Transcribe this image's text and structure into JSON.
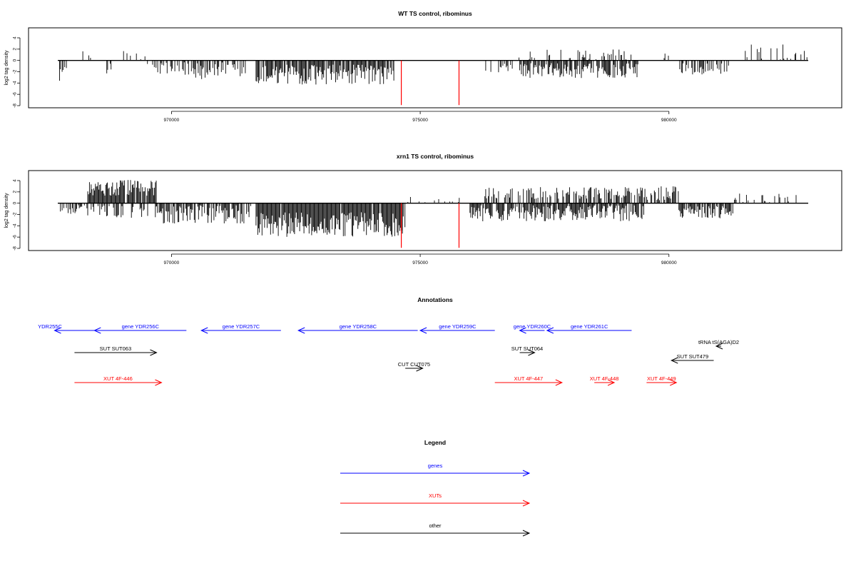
{
  "colors": {
    "gene": "#0000ff",
    "xut": "#ff0000",
    "other": "#000000",
    "marker": "#ff0000",
    "signal": "#000000"
  },
  "chart_data": [
    {
      "type": "bar",
      "title": "WT TS control, ribominus",
      "ylabel": "log2 tag density",
      "xlim": [
        967700,
        982900
      ],
      "ylim": [
        -8,
        5
      ],
      "xticks": [
        970000,
        975000,
        980000
      ],
      "yticks": [
        -8,
        -6,
        -4,
        -2,
        0,
        2,
        4
      ],
      "grid": false,
      "markers": [
        974620,
        975780
      ],
      "profile_regions": [
        {
          "start": 967750,
          "end": 967900,
          "mean": -2.0,
          "amp": 1.5,
          "fill": 0.6
        },
        {
          "start": 968200,
          "end": 968400,
          "mean": 1.0,
          "amp": 0.6,
          "fill": 0.4
        },
        {
          "start": 968700,
          "end": 968800,
          "mean": -1.2,
          "amp": 1.0,
          "fill": 0.5
        },
        {
          "start": 968950,
          "end": 969500,
          "mean": 0.9,
          "amp": 0.8,
          "fill": 0.35
        },
        {
          "start": 969500,
          "end": 970400,
          "mean": -1.5,
          "amp": 1.2,
          "fill": 0.5
        },
        {
          "start": 970400,
          "end": 971500,
          "mean": -1.8,
          "amp": 1.4,
          "fill": 0.55
        },
        {
          "start": 971700,
          "end": 974500,
          "mean": -2.5,
          "amp": 1.6,
          "fill": 0.85
        },
        {
          "start": 976300,
          "end": 976900,
          "mean": -1.4,
          "amp": 1.0,
          "fill": 0.45
        },
        {
          "start": 976900,
          "end": 977300,
          "mean": 1.2,
          "amp": 1.2,
          "fill": 0.35
        },
        {
          "start": 977000,
          "end": 979400,
          "mean": -1.8,
          "amp": 1.2,
          "fill": 0.8
        },
        {
          "start": 977500,
          "end": 979300,
          "mean": 1.0,
          "amp": 0.9,
          "fill": 0.2
        },
        {
          "start": 979800,
          "end": 980000,
          "mean": 0.8,
          "amp": 0.4,
          "fill": 0.3
        },
        {
          "start": 980200,
          "end": 981200,
          "mean": -1.5,
          "amp": 1.0,
          "fill": 0.45
        },
        {
          "start": 981500,
          "end": 982800,
          "mean": 1.5,
          "amp": 1.2,
          "fill": 0.25
        }
      ]
    },
    {
      "type": "bar",
      "title": "xrn1 TS control, ribominus",
      "ylabel": "log2 tag density",
      "xlim": [
        967700,
        982900
      ],
      "ylim": [
        -8,
        5
      ],
      "xticks": [
        970000,
        975000,
        980000
      ],
      "yticks": [
        -8,
        -6,
        -4,
        -2,
        0,
        2,
        4
      ],
      "grid": false,
      "markers": [
        974620,
        975780
      ],
      "profile_regions": [
        {
          "start": 967750,
          "end": 968300,
          "mean": -1.2,
          "amp": 0.8,
          "fill": 0.5
        },
        {
          "start": 968300,
          "end": 969700,
          "mean": 2.7,
          "amp": 1.3,
          "fill": 0.95
        },
        {
          "start": 968300,
          "end": 969700,
          "mean": -1.5,
          "amp": 1.0,
          "fill": 0.35
        },
        {
          "start": 969700,
          "end": 971600,
          "mean": -2.0,
          "amp": 1.5,
          "fill": 0.7
        },
        {
          "start": 971700,
          "end": 974700,
          "mean": -3.8,
          "amp": 2.0,
          "fill": 0.95
        },
        {
          "start": 974700,
          "end": 976000,
          "mean": 0.5,
          "amp": 0.8,
          "fill": 0.2
        },
        {
          "start": 976000,
          "end": 979500,
          "mean": -1.8,
          "amp": 1.3,
          "fill": 0.85
        },
        {
          "start": 976300,
          "end": 979500,
          "mean": 1.8,
          "amp": 1.0,
          "fill": 0.6
        },
        {
          "start": 979500,
          "end": 980200,
          "mean": 1.8,
          "amp": 1.2,
          "fill": 0.6
        },
        {
          "start": 980200,
          "end": 981300,
          "mean": -1.6,
          "amp": 1.0,
          "fill": 0.8
        },
        {
          "start": 981300,
          "end": 982800,
          "mean": 1.0,
          "amp": 0.8,
          "fill": 0.2
        }
      ]
    }
  ],
  "annotations": {
    "title": "Annotations",
    "xlim": [
      967700,
      982900
    ],
    "features": [
      {
        "label": "YDR255C",
        "kind": "gene",
        "start": 967650,
        "end": 968450,
        "dir": "left",
        "row": 1
      },
      {
        "label": "gene YDR256C",
        "kind": "gene",
        "start": 968450,
        "end": 970300,
        "dir": "left",
        "row": 1
      },
      {
        "label": "gene YDR257C",
        "kind": "gene",
        "start": 970600,
        "end": 972200,
        "dir": "left",
        "row": 1
      },
      {
        "label": "gene YDR258C",
        "kind": "gene",
        "start": 972550,
        "end": 974950,
        "dir": "left",
        "row": 1
      },
      {
        "label": "gene YDR259C",
        "kind": "gene",
        "start": 975000,
        "end": 976500,
        "dir": "left",
        "row": 1
      },
      {
        "label": "gene YDR260C",
        "kind": "gene",
        "start": 977000,
        "end": 977500,
        "dir": "left",
        "row": 1
      },
      {
        "label": "gene YDR261C",
        "kind": "gene",
        "start": 977550,
        "end": 979250,
        "dir": "left",
        "row": 1
      },
      {
        "label": "tRNA tS(AGA)D2",
        "kind": "other",
        "start": 980950,
        "end": 981050,
        "dir": "left",
        "row": 2
      },
      {
        "label": "SUT SUT063",
        "kind": "other",
        "start": 968050,
        "end": 969700,
        "dir": "right",
        "row": 3
      },
      {
        "label": "SUT SUT064",
        "kind": "other",
        "start": 977000,
        "end": 977300,
        "dir": "right",
        "row": 3
      },
      {
        "label": "SUT SUT479",
        "kind": "other",
        "start": 980050,
        "end": 980900,
        "dir": "left",
        "row": 4
      },
      {
        "label": "CUT CUT075",
        "kind": "other",
        "start": 974700,
        "end": 975050,
        "dir": "right",
        "row": 5
      },
      {
        "label": "XUT 4F-446",
        "kind": "xut",
        "start": 968050,
        "end": 969800,
        "dir": "right",
        "row": 6
      },
      {
        "label": "XUT 4F-447",
        "kind": "xut",
        "start": 976500,
        "end": 977850,
        "dir": "right",
        "row": 6
      },
      {
        "label": "XUT 4F-448",
        "kind": "xut",
        "start": 978500,
        "end": 978900,
        "dir": "right",
        "row": 6
      },
      {
        "label": "XUT 4F-449",
        "kind": "xut",
        "start": 979550,
        "end": 980150,
        "dir": "right",
        "row": 6
      }
    ]
  },
  "legend": {
    "title": "Legend",
    "items": [
      {
        "label": "genes",
        "kind": "gene"
      },
      {
        "label": "XUTs",
        "kind": "xut"
      },
      {
        "label": "other",
        "kind": "other"
      }
    ]
  }
}
